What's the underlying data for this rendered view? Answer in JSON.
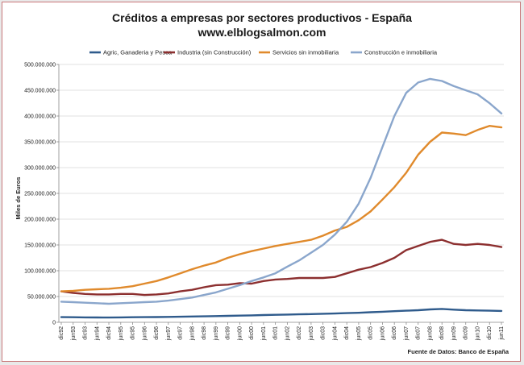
{
  "chart_data": {
    "type": "line",
    "title": "Créditos a empresas por sectores productivos - España",
    "subtitle": "www.elblogsalmon.com",
    "ylabel": "Miles de Euros",
    "xlabel": "",
    "source": "Fuente de Datos: Banco de España",
    "ylim": [
      0,
      500000000
    ],
    "yticks": [
      {
        "value": 0,
        "label": "0"
      },
      {
        "value": 50000000,
        "label": "50.000.000"
      },
      {
        "value": 100000000,
        "label": "100.000.000"
      },
      {
        "value": 150000000,
        "label": "150.000.000"
      },
      {
        "value": 200000000,
        "label": "200.000.000"
      },
      {
        "value": 250000000,
        "label": "250.000.000"
      },
      {
        "value": 300000000,
        "label": "300.000.000"
      },
      {
        "value": 350000000,
        "label": "350.000.000"
      },
      {
        "value": 400000000,
        "label": "400.000.000"
      },
      {
        "value": 450000000,
        "label": "450.000.000"
      },
      {
        "value": 500000000,
        "label": "500.000.000"
      }
    ],
    "xticks": [
      "dic92",
      "jun93",
      "dic93",
      "jun94",
      "dic94",
      "jun95",
      "dic95",
      "jun96",
      "dic96",
      "jun97",
      "dic97",
      "jun98",
      "dic98",
      "jun99",
      "dic99",
      "jun00",
      "dic00",
      "jun01",
      "dic01",
      "jun02",
      "dic02",
      "jun03",
      "dic03",
      "jun04",
      "dic04",
      "jun05",
      "dic05",
      "jun06",
      "dic06",
      "jun07",
      "dic07",
      "jun08",
      "dic08",
      "jun09",
      "dic09",
      "jun10",
      "dic10",
      "jun11"
    ],
    "grid": "horizontal",
    "legend_position": "top",
    "series": [
      {
        "name": "Agric, Ganaderia y Pesca",
        "color": "#2f5b8c",
        "values": [
          10000000,
          9800000,
          9500000,
          9300000,
          9200000,
          9500000,
          9800000,
          10000000,
          10200000,
          10500000,
          10800000,
          11200000,
          11500000,
          12000000,
          12500000,
          13000000,
          13500000,
          14000000,
          14500000,
          15000000,
          15500000,
          16000000,
          16500000,
          17000000,
          17800000,
          18500000,
          19500000,
          20500000,
          21500000,
          22500000,
          23500000,
          25000000,
          26000000,
          24500000,
          23500000,
          23000000,
          22500000,
          22000000
        ]
      },
      {
        "name": "Industria (sin Construcción)",
        "color": "#8c2f2f",
        "values": [
          60000000,
          57000000,
          55000000,
          54000000,
          54000000,
          55000000,
          55000000,
          53000000,
          54000000,
          56000000,
          60000000,
          63000000,
          68000000,
          72000000,
          73000000,
          76000000,
          75000000,
          80000000,
          83000000,
          84000000,
          86000000,
          86000000,
          86000000,
          88000000,
          95000000,
          102000000,
          107000000,
          115000000,
          125000000,
          140000000,
          148000000,
          156000000,
          160000000,
          152000000,
          150000000,
          152000000,
          150000000,
          146000000
        ]
      },
      {
        "name": "Servicios sin inmobiliaria",
        "color": "#e08a2c",
        "values": [
          60000000,
          61000000,
          63000000,
          64000000,
          65000000,
          67000000,
          70000000,
          75000000,
          80000000,
          87000000,
          95000000,
          103000000,
          110000000,
          116000000,
          125000000,
          132000000,
          138000000,
          143000000,
          148000000,
          152000000,
          156000000,
          160000000,
          168000000,
          178000000,
          185000000,
          198000000,
          215000000,
          238000000,
          262000000,
          290000000,
          325000000,
          350000000,
          368000000,
          366000000,
          363000000,
          373000000,
          381000000,
          378000000
        ]
      },
      {
        "name": "Construcción e inmobiliaria",
        "color": "#8aa6cc",
        "values": [
          40000000,
          39000000,
          38000000,
          37000000,
          36000000,
          37000000,
          38000000,
          39000000,
          40000000,
          42000000,
          45000000,
          48000000,
          53000000,
          58000000,
          65000000,
          72000000,
          80000000,
          87000000,
          95000000,
          108000000,
          120000000,
          135000000,
          150000000,
          170000000,
          195000000,
          230000000,
          280000000,
          340000000,
          400000000,
          445000000,
          465000000,
          472000000,
          468000000,
          458000000,
          450000000,
          442000000,
          425000000,
          405000000
        ]
      }
    ]
  }
}
